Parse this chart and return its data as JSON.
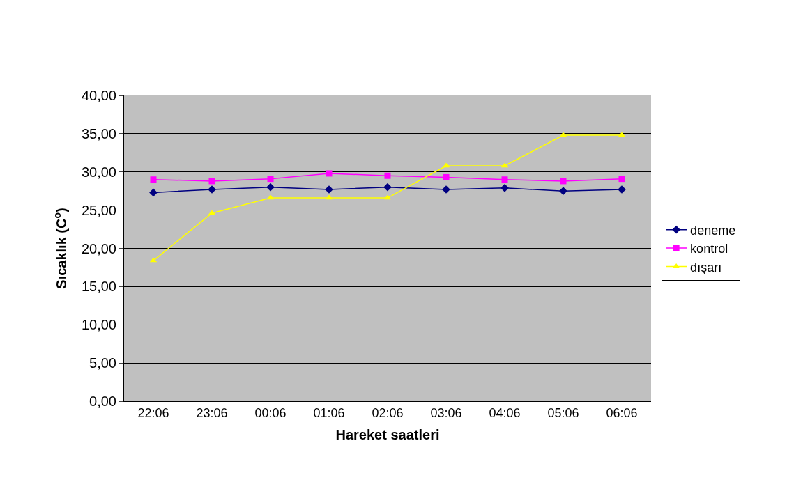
{
  "chart_data": {
    "type": "line",
    "xlabel": "Hareket saatleri",
    "ylabel": "Sıcaklık (C$^{o}$)",
    "categories": [
      "22:06",
      "23:06",
      "00:06",
      "01:06",
      "02:06",
      "03:06",
      "04:06",
      "05:06",
      "06:06"
    ],
    "series": [
      {
        "name": "deneme",
        "color": "#000080",
        "marker": "diamond",
        "values": [
          27.3,
          27.7,
          28.0,
          27.7,
          28.0,
          27.7,
          27.9,
          27.5,
          27.7
        ]
      },
      {
        "name": "kontrol",
        "color": "#ff00ff",
        "marker": "square",
        "values": [
          29.0,
          28.8,
          29.1,
          29.8,
          29.5,
          29.3,
          29.0,
          28.8,
          29.1
        ]
      },
      {
        "name": "dışarı",
        "color": "#ffff00",
        "marker": "triangle",
        "values": [
          18.4,
          24.6,
          26.6,
          26.6,
          26.6,
          30.8,
          30.8,
          34.8,
          34.8
        ]
      }
    ],
    "ylim": [
      0,
      40
    ],
    "yticks": [
      {
        "value": 0,
        "label": "0,00"
      },
      {
        "value": 5,
        "label": "5,00"
      },
      {
        "value": 10,
        "label": "10,00"
      },
      {
        "value": 15,
        "label": "15,00"
      },
      {
        "value": 20,
        "label": "20,00"
      },
      {
        "value": 25,
        "label": "25,00"
      },
      {
        "value": 30,
        "label": "30,00"
      },
      {
        "value": 35,
        "label": "35,00"
      },
      {
        "value": 40,
        "label": "40,00"
      }
    ],
    "grid": "y",
    "legend": "right",
    "line_style": "solid"
  }
}
